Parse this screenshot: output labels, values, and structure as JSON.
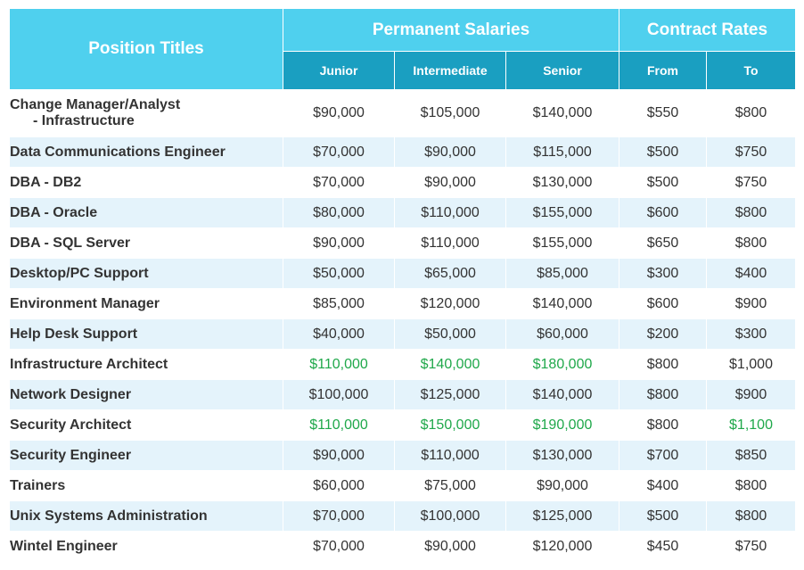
{
  "header": {
    "position_titles": "Position Titles",
    "permanent_salaries": "Permanent Salaries",
    "contract_rates": "Contract Rates",
    "junior": "Junior",
    "intermediate": "Intermediate",
    "senior": "Senior",
    "from": "From",
    "to": "To"
  },
  "highlight_color": "#1fa84a",
  "rows": [
    {
      "title": "Change Manager/Analyst",
      "title_line2": "- Infrastructure",
      "junior": "$90,000",
      "intermediate": "$105,000",
      "senior": "$140,000",
      "from": "$550",
      "to": "$800"
    },
    {
      "title": "Data Communications Engineer",
      "junior": "$70,000",
      "intermediate": "$90,000",
      "senior": "$115,000",
      "from": "$500",
      "to": "$750"
    },
    {
      "title": "DBA - DB2",
      "junior": "$70,000",
      "intermediate": "$90,000",
      "senior": "$130,000",
      "from": "$500",
      "to": "$750"
    },
    {
      "title": "DBA - Oracle",
      "junior": "$80,000",
      "intermediate": "$110,000",
      "senior": "$155,000",
      "from": "$600",
      "to": "$800"
    },
    {
      "title": "DBA - SQL Server",
      "junior": "$90,000",
      "intermediate": "$110,000",
      "senior": "$155,000",
      "from": "$650",
      "to": "$800"
    },
    {
      "title": "Desktop/PC Support",
      "junior": "$50,000",
      "intermediate": "$65,000",
      "senior": "$85,000",
      "from": "$300",
      "to": "$400"
    },
    {
      "title": "Environment Manager",
      "junior": "$85,000",
      "intermediate": "$120,000",
      "senior": "$140,000",
      "from": "$600",
      "to": "$900"
    },
    {
      "title": "Help Desk Support",
      "junior": "$40,000",
      "intermediate": "$50,000",
      "senior": "$60,000",
      "from": "$200",
      "to": "$300"
    },
    {
      "title": "Infrastructure Architect",
      "junior": "$110,000",
      "intermediate": "$140,000",
      "senior": "$180,000",
      "from": "$800",
      "to": "$1,000",
      "highlighted": [
        "junior",
        "intermediate",
        "senior"
      ]
    },
    {
      "title": "Network Designer",
      "junior": "$100,000",
      "intermediate": "$125,000",
      "senior": "$140,000",
      "from": "$800",
      "to": "$900"
    },
    {
      "title": "Security Architect",
      "junior": "$110,000",
      "intermediate": "$150,000",
      "senior": "$190,000",
      "from": "$800",
      "to": "$1,100",
      "highlighted": [
        "junior",
        "intermediate",
        "senior",
        "to"
      ]
    },
    {
      "title": "Security Engineer",
      "junior": "$90,000",
      "intermediate": "$110,000",
      "senior": "$130,000",
      "from": "$700",
      "to": "$850"
    },
    {
      "title": "Trainers",
      "junior": "$60,000",
      "intermediate": "$75,000",
      "senior": "$90,000",
      "from": "$400",
      "to": "$800"
    },
    {
      "title": "Unix Systems Administration",
      "junior": "$70,000",
      "intermediate": "$100,000",
      "senior": "$125,000",
      "from": "$500",
      "to": "$800"
    },
    {
      "title": "Wintel Engineer",
      "junior": "$70,000",
      "intermediate": "$90,000",
      "senior": "$120,000",
      "from": "$450",
      "to": "$750"
    }
  ]
}
